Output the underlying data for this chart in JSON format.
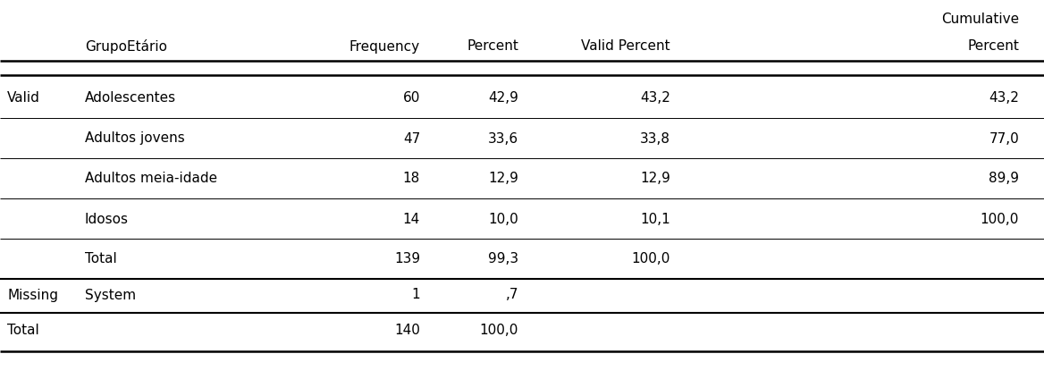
{
  "col_header_cumulative": "Cumulative",
  "col_headers": [
    "GrupoEtário",
    "Frequency",
    "Percent",
    "Valid Percent",
    "Percent"
  ],
  "rows": [
    {
      "section": "Valid",
      "label": "Adolescentes",
      "frequency": "60",
      "percent": "42,9",
      "valid_percent": "43,2",
      "cum_percent": "43,2"
    },
    {
      "section": "",
      "label": "Adultos jovens",
      "frequency": "47",
      "percent": "33,6",
      "valid_percent": "33,8",
      "cum_percent": "77,0"
    },
    {
      "section": "",
      "label": "Adultos meia-idade",
      "frequency": "18",
      "percent": "12,9",
      "valid_percent": "12,9",
      "cum_percent": "89,9"
    },
    {
      "section": "",
      "label": "Idosos",
      "frequency": "14",
      "percent": "10,0",
      "valid_percent": "10,1",
      "cum_percent": "100,0"
    },
    {
      "section": "",
      "label": "Total",
      "frequency": "139",
      "percent": "99,3",
      "valid_percent": "100,0",
      "cum_percent": ""
    },
    {
      "section": "Missing",
      "label": "System",
      "frequency": "1",
      "percent": ",7",
      "valid_percent": "",
      "cum_percent": ""
    },
    {
      "section": "Total",
      "label": "",
      "frequency": "140",
      "percent": "100,0",
      "valid_percent": "",
      "cum_percent": ""
    }
  ],
  "font_size": 11,
  "background_color": "#ffffff",
  "text_color": "#000000",
  "line_color": "#000000",
  "fig_width": 11.68,
  "fig_height": 4.24
}
